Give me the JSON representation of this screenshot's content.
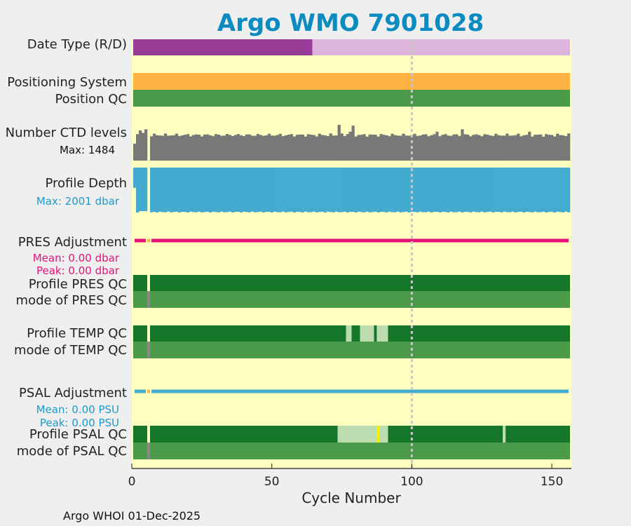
{
  "chart_data": {
    "type": "timeline",
    "title": "Argo WMO 7901028",
    "xlabel": "Cycle Number",
    "xlim": [
      0,
      157
    ],
    "xticks": [
      0,
      50,
      100,
      150
    ],
    "vertical_marker_cycle": 100,
    "footer": "Argo WHOI 01-Dec-2025",
    "rows": {
      "date_type": {
        "label": "Date Type (R/D)",
        "segments": [
          {
            "from": 0.5,
            "to": 64.5,
            "value": "D"
          },
          {
            "from": 64.5,
            "to": 156.5,
            "value": "R"
          }
        ]
      },
      "positioning_system": {
        "label": "Positioning System",
        "segments": [
          {
            "from": 0.5,
            "to": 156.5,
            "value": "GPS"
          }
        ]
      },
      "position_qc": {
        "label": "Position QC",
        "segments": [
          {
            "from": 0.5,
            "to": 156.5,
            "value": "1"
          }
        ]
      },
      "ctd_levels": {
        "label": "Number CTD levels",
        "max_text": "Max: 1484",
        "max": 1484,
        "typical": 1060,
        "missing_cycles": [
          6
        ],
        "overrides": [
          {
            "cycle": 1,
            "value": 700
          },
          {
            "cycle": 2,
            "value": 1100
          },
          {
            "cycle": 3,
            "value": 1250
          },
          {
            "cycle": 4,
            "value": 1150
          },
          {
            "cycle": 5,
            "value": 1300
          },
          {
            "cycle": 74,
            "value": 1484
          },
          {
            "cycle": 77,
            "value": 1100
          },
          {
            "cycle": 78,
            "value": 1200
          },
          {
            "cycle": 79,
            "value": 1450
          },
          {
            "cycle": 118,
            "value": 1300
          },
          {
            "cycle": 109,
            "value": 1200
          },
          {
            "cycle": 142,
            "value": 1200
          }
        ]
      },
      "profile_depth": {
        "label": "Profile Depth",
        "max_text": "Max: 2001 dbar",
        "max": 2001,
        "typical": 1960,
        "missing_cycles": [
          6
        ],
        "overrides": [
          {
            "cycle": 1,
            "value": 900
          },
          {
            "cycle": 2,
            "value": 2001
          },
          {
            "cycle": 3,
            "value": 1940
          },
          {
            "cycle": 4,
            "value": 1940
          },
          {
            "cycle": 5,
            "value": 1940
          },
          {
            "cycle": 7,
            "value": 1990
          }
        ]
      },
      "pres_adjustment": {
        "label": "PRES Adjustment",
        "mean_text": "Mean: 0.00 dbar",
        "peak_text": "Peak: 0.00 dbar",
        "segments": [
          {
            "from": 1,
            "to": 5,
            "value": "0"
          },
          {
            "from": 7,
            "to": 156,
            "value": "0"
          }
        ],
        "missing_cycles": [
          6
        ]
      },
      "profile_pres_qc": {
        "label": "Profile PRES QC",
        "segments": [
          {
            "from": 0.5,
            "to": 5.5,
            "value": "A"
          },
          {
            "from": 6.5,
            "to": 156.5,
            "value": "A"
          }
        ]
      },
      "mode_pres_qc": {
        "label": "mode of PRES QC",
        "segments": [
          {
            "from": 0.5,
            "to": 5.5,
            "value": "1"
          },
          {
            "from": 5.5,
            "to": 6.5,
            "value": "missing"
          },
          {
            "from": 6.5,
            "to": 156.5,
            "value": "1"
          }
        ]
      },
      "profile_temp_qc": {
        "label": "Profile TEMP QC",
        "segments": [
          {
            "from": 0.5,
            "to": 5.5,
            "value": "A"
          },
          {
            "from": 6.5,
            "to": 76.5,
            "value": "A"
          },
          {
            "from": 76.5,
            "to": 78.5,
            "value": "B"
          },
          {
            "from": 78.5,
            "to": 81.5,
            "value": "A"
          },
          {
            "from": 81.5,
            "to": 86.5,
            "value": "B"
          },
          {
            "from": 86.5,
            "to": 87.5,
            "value": "A"
          },
          {
            "from": 87.5,
            "to": 91.5,
            "value": "B"
          },
          {
            "from": 91.5,
            "to": 156.5,
            "value": "A"
          }
        ]
      },
      "mode_temp_qc": {
        "label": "mode of TEMP QC",
        "segments": [
          {
            "from": 0.5,
            "to": 5.5,
            "value": "1"
          },
          {
            "from": 5.5,
            "to": 6.5,
            "value": "missing"
          },
          {
            "from": 6.5,
            "to": 156.5,
            "value": "1"
          }
        ]
      },
      "psal_adjustment": {
        "label": "PSAL Adjustment",
        "mean_text": "Mean: 0.00 PSU",
        "peak_text": "Peak: 0.00 PSU",
        "segments": [
          {
            "from": 1,
            "to": 5,
            "value": "0"
          },
          {
            "from": 7,
            "to": 156,
            "value": "0"
          }
        ],
        "missing_cycles": [
          6
        ]
      },
      "profile_psal_qc": {
        "label": "Profile PSAL QC",
        "segments": [
          {
            "from": 0.5,
            "to": 5.5,
            "value": "A"
          },
          {
            "from": 6.5,
            "to": 73.5,
            "value": "A"
          },
          {
            "from": 73.5,
            "to": 87.5,
            "value": "B"
          },
          {
            "from": 87.5,
            "to": 88.5,
            "value": "C"
          },
          {
            "from": 88.5,
            "to": 91.5,
            "value": "B"
          },
          {
            "from": 91.5,
            "to": 132.5,
            "value": "A"
          },
          {
            "from": 132.5,
            "to": 133.5,
            "value": "B"
          },
          {
            "from": 133.5,
            "to": 156.5,
            "value": "A"
          }
        ]
      },
      "mode_psal_qc": {
        "label": "mode of PSAL QC",
        "segments": [
          {
            "from": 0.5,
            "to": 5.5,
            "value": "1"
          },
          {
            "from": 5.5,
            "to": 6.5,
            "value": "missing"
          },
          {
            "from": 6.5,
            "to": 156.5,
            "value": "1"
          }
        ]
      }
    },
    "colors": {
      "background": "#efefef",
      "plot_bg": "#ffffc0",
      "title": "#0b8cc0",
      "date_D": "#983c98",
      "date_R": "#dcb4dc",
      "positioning": "#fdb444",
      "qc_1": "#4a9a4a",
      "profile_A": "#15762a",
      "profile_B": "#bcdcb0",
      "profile_C": "#f0f000",
      "missing": "#888888",
      "ctd": "#787878",
      "depth": "#43abd0",
      "depth_text": "#1a9ad0",
      "pres_adj": "#e8107a",
      "pres_adj_missing": "#fdb444",
      "psal_adj": "#43abd0",
      "marker": "#c8c8c8",
      "axis": "#222222"
    }
  }
}
